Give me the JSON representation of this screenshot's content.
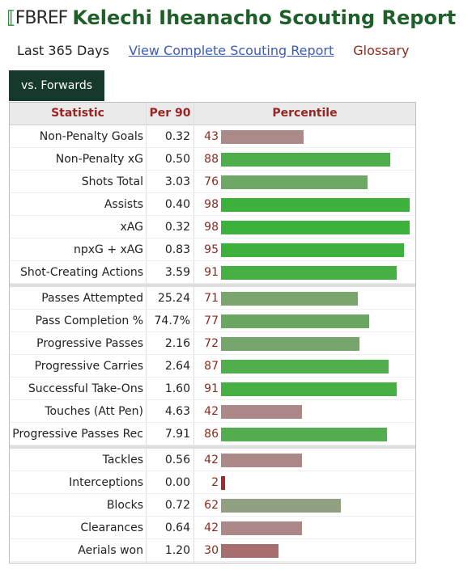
{
  "header": {
    "logo_text": "FBREF",
    "title": "Kelechi Iheanacho Scouting Report"
  },
  "subnav": {
    "period": "Last 365 Days",
    "complete_link": "View Complete Scouting Report",
    "glossary": "Glossary"
  },
  "tab": {
    "label": "vs. Forwards"
  },
  "table": {
    "columns": [
      "Statistic",
      "Per 90",
      "Percentile"
    ],
    "groups": [
      [
        {
          "stat": "Non-Penalty Goals",
          "per90": "0.32",
          "pct": 43
        },
        {
          "stat": "Non-Penalty xG",
          "per90": "0.50",
          "pct": 88
        },
        {
          "stat": "Shots Total",
          "per90": "3.03",
          "pct": 76
        },
        {
          "stat": "Assists",
          "per90": "0.40",
          "pct": 98
        },
        {
          "stat": "xAG",
          "per90": "0.32",
          "pct": 98
        },
        {
          "stat": "npxG + xAG",
          "per90": "0.83",
          "pct": 95
        },
        {
          "stat": "Shot-Creating Actions",
          "per90": "3.59",
          "pct": 91
        }
      ],
      [
        {
          "stat": "Passes Attempted",
          "per90": "25.24",
          "pct": 71
        },
        {
          "stat": "Pass Completion %",
          "per90": "74.7%",
          "pct": 77
        },
        {
          "stat": "Progressive Passes",
          "per90": "2.16",
          "pct": 72
        },
        {
          "stat": "Progressive Carries",
          "per90": "2.64",
          "pct": 87
        },
        {
          "stat": "Successful Take-Ons",
          "per90": "1.60",
          "pct": 91
        },
        {
          "stat": "Touches (Att Pen)",
          "per90": "4.63",
          "pct": 42
        },
        {
          "stat": "Progressive Passes Rec",
          "per90": "7.91",
          "pct": 86
        }
      ],
      [
        {
          "stat": "Tackles",
          "per90": "0.56",
          "pct": 42
        },
        {
          "stat": "Interceptions",
          "per90": "0.00",
          "pct": 2
        },
        {
          "stat": "Blocks",
          "per90": "0.72",
          "pct": 62
        },
        {
          "stat": "Clearances",
          "per90": "0.64",
          "pct": 42
        },
        {
          "stat": "Aerials won",
          "per90": "1.20",
          "pct": 30
        }
      ]
    ]
  },
  "colors": {
    "title_green": "#1f5f2a",
    "tab_bg": "#15392a",
    "link_blue": "#3b5bbd",
    "accent_red": "#8b2a1e",
    "bar_low_red": "#9c2a2a",
    "bar_mid_grey": "#b09a9a",
    "bar_high_green": "#3cb23c"
  }
}
